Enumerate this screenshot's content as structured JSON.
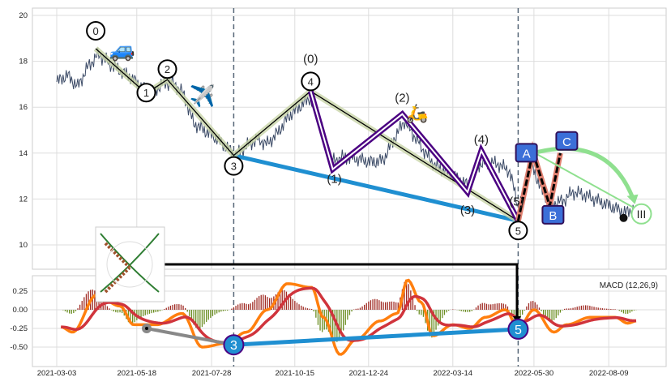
{
  "chart_data": {
    "type": "line",
    "title": "",
    "start_date": "2021-03-03",
    "x_ticks": [
      "2021-03-03",
      "2021-05-18",
      "2021-07-28",
      "2021-10-15",
      "2021-12-24",
      "2022-03-14",
      "2022-05-30",
      "2022-08-09"
    ],
    "x_tick_days": [
      0,
      76,
      147,
      226,
      296,
      376,
      453,
      524
    ],
    "price": {
      "ylim": [
        8.8,
        20.4
      ],
      "y_ticks": [
        "10",
        "12",
        "14",
        "16",
        "18",
        "20"
      ],
      "step_days": 10,
      "values": [
        17.1,
        17.4,
        16.9,
        17.8,
        18.3,
        17.9,
        17.6,
        17.3,
        16.9,
        16.6,
        17.0,
        17.1,
        16.6,
        15.3,
        15.0,
        14.7,
        14.3,
        13.9,
        14.3,
        14.6,
        14.4,
        14.9,
        15.6,
        16.0,
        16.4,
        15.4,
        13.6,
        13.8,
        13.8,
        13.7,
        13.6,
        13.7,
        14.6,
        15.4,
        14.7,
        14.0,
        13.4,
        13.2,
        12.9,
        12.6,
        13.5,
        13.6,
        13.5,
        13.2,
        11.3,
        13.6,
        12.4,
        11.8,
        11.9,
        12.3,
        12.2,
        12.0,
        11.8,
        11.6,
        11.4,
        11.6
      ]
    },
    "waves": {
      "primary": [
        {
          "label": "0",
          "day": 37,
          "price": 18.55
        },
        {
          "label": "1",
          "day": 85,
          "price": 16.6
        },
        {
          "label": "2",
          "day": 105,
          "price": 17.2
        },
        {
          "label": "3",
          "day": 168,
          "price": 13.9
        },
        {
          "label": "4",
          "day": 241,
          "price": 16.7
        },
        {
          "label": "5",
          "day": 438,
          "price": 11.05
        }
      ],
      "sub": [
        {
          "label": "(0)",
          "day": 241,
          "price": 16.7
        },
        {
          "label": "(1)",
          "day": 262,
          "price": 13.3
        },
        {
          "label": "(2)",
          "day": 328,
          "price": 15.7
        },
        {
          "label": "(3)",
          "day": 390,
          "price": 12.3
        },
        {
          "label": "(4)",
          "day": 403,
          "price": 14.1
        },
        {
          "label": "(5)",
          "day": 438,
          "price": 11.05
        }
      ],
      "correction": [
        {
          "label": "A",
          "day": 452,
          "price": 14.05
        },
        {
          "label": "B",
          "day": 468,
          "price": 11.7
        },
        {
          "label": "C",
          "day": 478,
          "price": 14.0
        }
      ],
      "target": {
        "label": "III",
        "day": 555,
        "price": 11.35
      }
    },
    "macd": {
      "label": "MACD (12,26,9)",
      "ylim": [
        -0.66,
        0.45
      ],
      "y_ticks": [
        "0.25",
        "0.00",
        "-0.25",
        "-0.50"
      ],
      "points": [
        [
          4,
          -0.23
        ],
        [
          15,
          -0.3
        ],
        [
          38,
          0.2
        ],
        [
          60,
          0.05
        ],
        [
          73,
          -0.2
        ],
        [
          95,
          -0.2
        ],
        [
          119,
          -0.05
        ],
        [
          138,
          -0.5
        ],
        [
          161,
          -0.45
        ],
        [
          180,
          -0.3
        ],
        [
          200,
          0.0
        ],
        [
          219,
          0.35
        ],
        [
          242,
          0.3
        ],
        [
          253,
          -0.1
        ],
        [
          269,
          -0.6
        ],
        [
          284,
          -0.4
        ],
        [
          307,
          -0.15
        ],
        [
          323,
          -0.05
        ],
        [
          333,
          0.4
        ],
        [
          346,
          0.1
        ],
        [
          357,
          -0.35
        ],
        [
          376,
          -0.2
        ],
        [
          392,
          -0.25
        ],
        [
          407,
          -0.1
        ],
        [
          426,
          0.0
        ],
        [
          438,
          -0.25
        ],
        [
          453,
          0.0
        ],
        [
          472,
          -0.3
        ],
        [
          484,
          -0.2
        ],
        [
          507,
          -0.1
        ],
        [
          530,
          -0.1
        ],
        [
          542,
          -0.18
        ],
        [
          550,
          -0.15
        ]
      ],
      "divergence": [
        {
          "label": "3",
          "day": 168,
          "value": -0.47
        },
        {
          "label": "5",
          "day": 438,
          "value": -0.26
        }
      ]
    },
    "colors": {
      "price": "#3b4a66",
      "macd": "#ff7f0e",
      "signal": "#d0343c",
      "hist_pos": "#a02b24",
      "hist_neg": "#6b8e23",
      "trend": "#1f8fd1",
      "wave": "#4b0082",
      "corr": "#e08070",
      "target": "#8fe08f",
      "label_box": "#3b6fd8"
    }
  },
  "icons": {
    "wave0": "🚙",
    "wave2": "✈️",
    "sub2": "🛵"
  }
}
